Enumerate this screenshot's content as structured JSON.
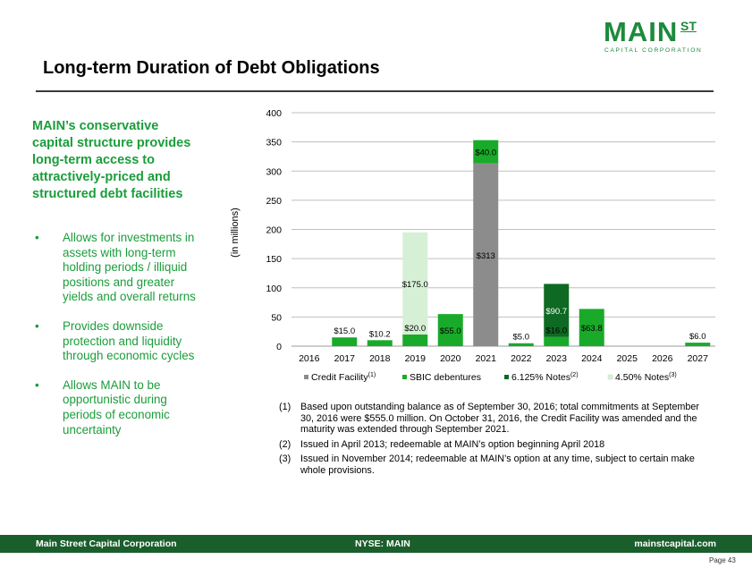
{
  "logo": {
    "main": "MAIN",
    "st": "ST",
    "sub": "CAPITAL CORPORATION"
  },
  "title": "Long-term Duration of Debt Obligations",
  "lead": "MAIN’s conservative capital structure provides long-term access to attractively-priced and structured debt facilities",
  "bullets": [
    "Allows for investments in assets with long-term holding periods / illiquid positions and greater yields and overall returns",
    "Provides downside protection and liquidity through economic cycles",
    "Allows MAIN to be opportunistic during periods of economic uncertainty"
  ],
  "chart_data": {
    "type": "bar",
    "stacked": true,
    "ylabel": "(in millions)",
    "ylim": [
      0,
      400
    ],
    "yticks": [
      "0",
      "50",
      "100",
      "150",
      "200",
      "250",
      "300",
      "350",
      "400"
    ],
    "categories": [
      "2016",
      "2017",
      "2018",
      "2019",
      "2020",
      "2021",
      "2022",
      "2023",
      "2024",
      "2025",
      "2026",
      "2027"
    ],
    "grid": true,
    "legend_position": "bottom",
    "series": [
      {
        "name": "Credit Facility",
        "sup": "(1)",
        "color": "#8c8c8c",
        "values": [
          0,
          0,
          0,
          0,
          0,
          313,
          0,
          0,
          0,
          0,
          0,
          0
        ],
        "labels": [
          "",
          "",
          "",
          "",
          "",
          "$313",
          "",
          "",
          "",
          "",
          "",
          ""
        ]
      },
      {
        "name": "SBIC debentures",
        "sup": "",
        "color": "#1aaa2a",
        "values": [
          0,
          15.0,
          10.2,
          20.0,
          55.0,
          40.0,
          5.0,
          16.0,
          63.8,
          0,
          0,
          6.0
        ],
        "labels": [
          "",
          "$15.0",
          "$10.2",
          "$20.0",
          "$55.0",
          "$40.0",
          "$5.0",
          "$16.0",
          "$63.8",
          "",
          "",
          "$6.0"
        ]
      },
      {
        "name": "6.125% Notes",
        "sup": "(2)",
        "color": "#0e6a22",
        "values": [
          0,
          0,
          0,
          0,
          0,
          0,
          0,
          90.7,
          0,
          0,
          0,
          0
        ],
        "labels": [
          "",
          "",
          "",
          "",
          "",
          "",
          "",
          "$90.7",
          "",
          "",
          "",
          ""
        ]
      },
      {
        "name": "4.50% Notes",
        "sup": "(3)",
        "color": "#d6f0d6",
        "values": [
          0,
          0,
          0,
          175.0,
          0,
          0,
          0,
          0,
          0,
          0,
          0,
          0
        ],
        "labels": [
          "",
          "",
          "",
          "$175.0",
          "",
          "",
          "",
          "",
          "",
          "",
          "",
          ""
        ]
      }
    ]
  },
  "notes": [
    {
      "num": "(1)",
      "text": "Based upon outstanding balance as of September 30, 2016; total commitments at September 30, 2016 were $555.0 million. On October 31, 2016, the Credit Facility was amended and the maturity was extended through September 2021."
    },
    {
      "num": "(2)",
      "text": "Issued in April 2013; redeemable at MAIN’s option beginning April 2018"
    },
    {
      "num": "(3)",
      "text": "Issued in November 2014; redeemable at MAIN’s option at any time, subject to certain make whole provisions."
    }
  ],
  "footer": {
    "left": "Main Street Capital Corporation",
    "center": "NYSE: MAIN",
    "right": "mainstcapital.com"
  },
  "page": "Page  43"
}
